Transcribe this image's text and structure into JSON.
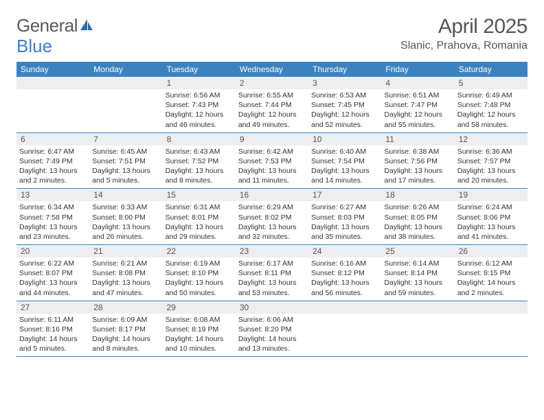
{
  "brand": {
    "word1": "General",
    "word2": "Blue"
  },
  "title": "April 2025",
  "location": "Slanic, Prahova, Romania",
  "colors": {
    "header_bg": "#3b83c0",
    "header_text": "#ffffff",
    "daynum_bg": "#eceef0",
    "text": "#333333",
    "rule": "#3b83c0",
    "logo_gray": "#5a5a5a",
    "logo_blue": "#3b7fc4"
  },
  "fonts": {
    "title_pt": 30,
    "location_pt": 16,
    "dayheader_pt": 12,
    "daynum_pt": 12,
    "body_pt": 10.5
  },
  "day_headers": [
    "Sunday",
    "Monday",
    "Tuesday",
    "Wednesday",
    "Thursday",
    "Friday",
    "Saturday"
  ],
  "weeks": [
    [
      null,
      null,
      {
        "n": "1",
        "sr": "Sunrise: 6:56 AM",
        "ss": "Sunset: 7:43 PM",
        "dl": "Daylight: 12 hours and 46 minutes."
      },
      {
        "n": "2",
        "sr": "Sunrise: 6:55 AM",
        "ss": "Sunset: 7:44 PM",
        "dl": "Daylight: 12 hours and 49 minutes."
      },
      {
        "n": "3",
        "sr": "Sunrise: 6:53 AM",
        "ss": "Sunset: 7:45 PM",
        "dl": "Daylight: 12 hours and 52 minutes."
      },
      {
        "n": "4",
        "sr": "Sunrise: 6:51 AM",
        "ss": "Sunset: 7:47 PM",
        "dl": "Daylight: 12 hours and 55 minutes."
      },
      {
        "n": "5",
        "sr": "Sunrise: 6:49 AM",
        "ss": "Sunset: 7:48 PM",
        "dl": "Daylight: 12 hours and 58 minutes."
      }
    ],
    [
      {
        "n": "6",
        "sr": "Sunrise: 6:47 AM",
        "ss": "Sunset: 7:49 PM",
        "dl": "Daylight: 13 hours and 2 minutes."
      },
      {
        "n": "7",
        "sr": "Sunrise: 6:45 AM",
        "ss": "Sunset: 7:51 PM",
        "dl": "Daylight: 13 hours and 5 minutes."
      },
      {
        "n": "8",
        "sr": "Sunrise: 6:43 AM",
        "ss": "Sunset: 7:52 PM",
        "dl": "Daylight: 13 hours and 8 minutes."
      },
      {
        "n": "9",
        "sr": "Sunrise: 6:42 AM",
        "ss": "Sunset: 7:53 PM",
        "dl": "Daylight: 13 hours and 11 minutes."
      },
      {
        "n": "10",
        "sr": "Sunrise: 6:40 AM",
        "ss": "Sunset: 7:54 PM",
        "dl": "Daylight: 13 hours and 14 minutes."
      },
      {
        "n": "11",
        "sr": "Sunrise: 6:38 AM",
        "ss": "Sunset: 7:56 PM",
        "dl": "Daylight: 13 hours and 17 minutes."
      },
      {
        "n": "12",
        "sr": "Sunrise: 6:36 AM",
        "ss": "Sunset: 7:57 PM",
        "dl": "Daylight: 13 hours and 20 minutes."
      }
    ],
    [
      {
        "n": "13",
        "sr": "Sunrise: 6:34 AM",
        "ss": "Sunset: 7:58 PM",
        "dl": "Daylight: 13 hours and 23 minutes."
      },
      {
        "n": "14",
        "sr": "Sunrise: 6:33 AM",
        "ss": "Sunset: 8:00 PM",
        "dl": "Daylight: 13 hours and 26 minutes."
      },
      {
        "n": "15",
        "sr": "Sunrise: 6:31 AM",
        "ss": "Sunset: 8:01 PM",
        "dl": "Daylight: 13 hours and 29 minutes."
      },
      {
        "n": "16",
        "sr": "Sunrise: 6:29 AM",
        "ss": "Sunset: 8:02 PM",
        "dl": "Daylight: 13 hours and 32 minutes."
      },
      {
        "n": "17",
        "sr": "Sunrise: 6:27 AM",
        "ss": "Sunset: 8:03 PM",
        "dl": "Daylight: 13 hours and 35 minutes."
      },
      {
        "n": "18",
        "sr": "Sunrise: 6:26 AM",
        "ss": "Sunset: 8:05 PM",
        "dl": "Daylight: 13 hours and 38 minutes."
      },
      {
        "n": "19",
        "sr": "Sunrise: 6:24 AM",
        "ss": "Sunset: 8:06 PM",
        "dl": "Daylight: 13 hours and 41 minutes."
      }
    ],
    [
      {
        "n": "20",
        "sr": "Sunrise: 6:22 AM",
        "ss": "Sunset: 8:07 PM",
        "dl": "Daylight: 13 hours and 44 minutes."
      },
      {
        "n": "21",
        "sr": "Sunrise: 6:21 AM",
        "ss": "Sunset: 8:08 PM",
        "dl": "Daylight: 13 hours and 47 minutes."
      },
      {
        "n": "22",
        "sr": "Sunrise: 6:19 AM",
        "ss": "Sunset: 8:10 PM",
        "dl": "Daylight: 13 hours and 50 minutes."
      },
      {
        "n": "23",
        "sr": "Sunrise: 6:17 AM",
        "ss": "Sunset: 8:11 PM",
        "dl": "Daylight: 13 hours and 53 minutes."
      },
      {
        "n": "24",
        "sr": "Sunrise: 6:16 AM",
        "ss": "Sunset: 8:12 PM",
        "dl": "Daylight: 13 hours and 56 minutes."
      },
      {
        "n": "25",
        "sr": "Sunrise: 6:14 AM",
        "ss": "Sunset: 8:14 PM",
        "dl": "Daylight: 13 hours and 59 minutes."
      },
      {
        "n": "26",
        "sr": "Sunrise: 6:12 AM",
        "ss": "Sunset: 8:15 PM",
        "dl": "Daylight: 14 hours and 2 minutes."
      }
    ],
    [
      {
        "n": "27",
        "sr": "Sunrise: 6:11 AM",
        "ss": "Sunset: 8:16 PM",
        "dl": "Daylight: 14 hours and 5 minutes."
      },
      {
        "n": "28",
        "sr": "Sunrise: 6:09 AM",
        "ss": "Sunset: 8:17 PM",
        "dl": "Daylight: 14 hours and 8 minutes."
      },
      {
        "n": "29",
        "sr": "Sunrise: 6:08 AM",
        "ss": "Sunset: 8:19 PM",
        "dl": "Daylight: 14 hours and 10 minutes."
      },
      {
        "n": "30",
        "sr": "Sunrise: 6:06 AM",
        "ss": "Sunset: 8:20 PM",
        "dl": "Daylight: 14 hours and 13 minutes."
      },
      null,
      null,
      null
    ]
  ]
}
